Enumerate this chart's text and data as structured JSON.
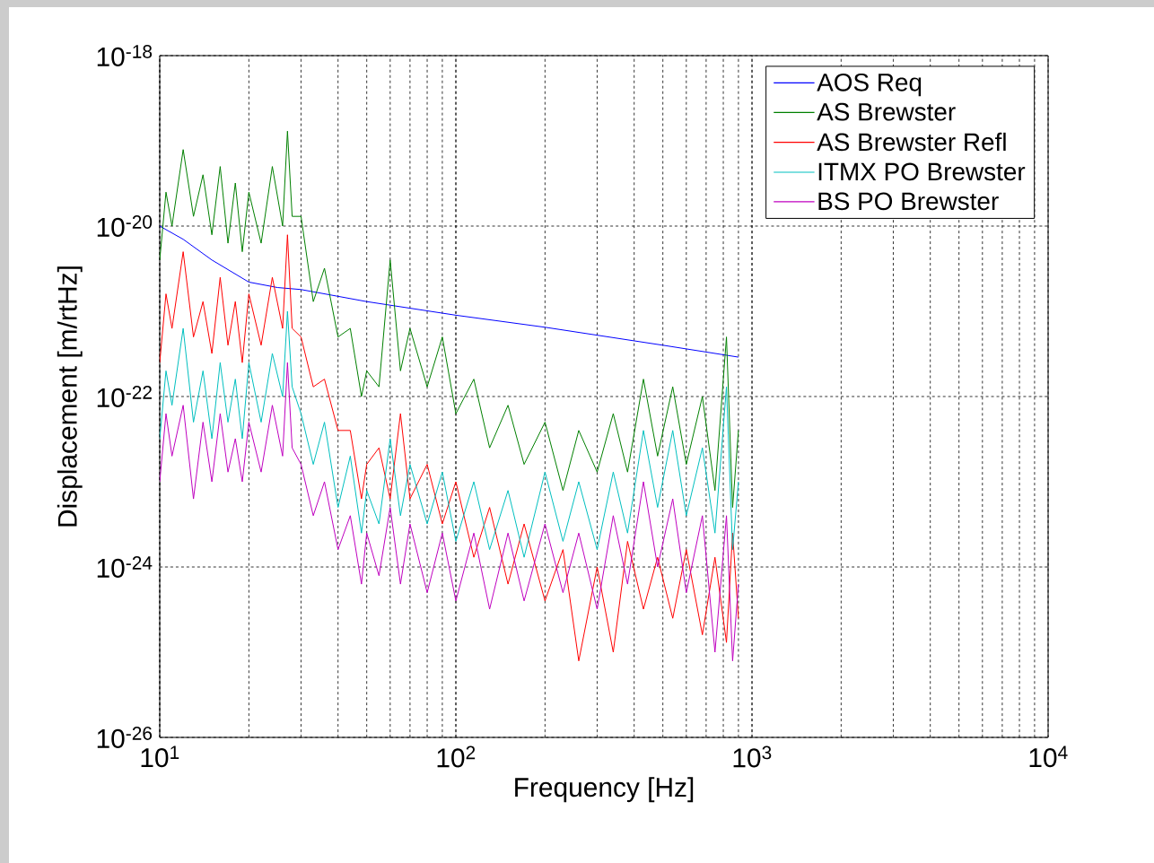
{
  "chart_data": {
    "type": "line",
    "xlabel": "Frequency [Hz]",
    "ylabel": "Displacement [m/rtHz]",
    "log": "xy",
    "grid": true,
    "legend": "top right",
    "marker": "none",
    "line_style": "solid",
    "xlim": [
      10,
      10000
    ],
    "ylim": [
      1e-26,
      1e-18
    ],
    "xticks": [
      {
        "value": 10,
        "label": "10$^{1}$"
      },
      {
        "value": 100,
        "label": "10$^{2}$"
      },
      {
        "value": 1000,
        "label": "10$^{3}$"
      },
      {
        "value": 10000,
        "label": "10$^{4}$"
      }
    ],
    "yticks": [
      {
        "value": 1e-26,
        "label": "10$^{-26}$"
      },
      {
        "value": 1e-24,
        "label": "10$^{-24}$"
      },
      {
        "value": 1e-22,
        "label": "10$^{-22}$"
      },
      {
        "value": 1e-20,
        "label": "10$^{-20}$"
      },
      {
        "value": 1e-18,
        "label": "10$^{-18}$"
      }
    ],
    "x": [
      10,
      10.5,
      11,
      12,
      13,
      14,
      15,
      16,
      17,
      18,
      19,
      20,
      22,
      24,
      26,
      27,
      28,
      30,
      33,
      36,
      40,
      44,
      48,
      50,
      55,
      60,
      65,
      70,
      80,
      90,
      100,
      115,
      130,
      150,
      170,
      200,
      230,
      260,
      300,
      340,
      380,
      430,
      480,
      540,
      600,
      680,
      750,
      820,
      860,
      900
    ],
    "series": [
      {
        "name": "AOS Req",
        "color": "#0000ff",
        "x": [
          10,
          12,
          15,
          20,
          25,
          30,
          50,
          100,
          200,
          500,
          900
        ],
        "values": [
          1e-20,
          7e-21,
          4e-21,
          2.2e-21,
          1.9e-21,
          1.8e-21,
          1.3e-21,
          9e-22,
          6.5e-22,
          4e-22,
          2.9e-22
        ]
      },
      {
        "name": "AS Brewster",
        "color": "#008000",
        "values": [
          4e-21,
          2.5e-20,
          1e-20,
          7.9e-20,
          1.3e-20,
          4e-20,
          7.9e-21,
          5e-20,
          6.3e-21,
          3.2e-20,
          5e-21,
          2.5e-20,
          6.3e-21,
          5e-20,
          1e-20,
          1.3e-19,
          1.3e-20,
          1.3e-20,
          1.3e-21,
          3.2e-21,
          5e-22,
          6.3e-22,
          1e-22,
          2e-22,
          1.3e-22,
          4e-21,
          2e-22,
          6.3e-22,
          1.3e-22,
          5e-22,
          6.3e-23,
          1.6e-22,
          2.5e-23,
          7.9e-23,
          1.6e-23,
          5e-23,
          7.9e-24,
          4e-23,
          1.3e-23,
          6.3e-23,
          1.3e-23,
          1.6e-22,
          2e-23,
          1.3e-22,
          1.6e-23,
          1e-22,
          7.9e-24,
          5e-22,
          5e-24,
          4e-23
        ]
      },
      {
        "name": "AS Brewster Refl",
        "color": "#ff0000",
        "values": [
          2.5e-22,
          1.6e-21,
          6.3e-22,
          5e-21,
          5e-22,
          1.3e-21,
          3.2e-22,
          2.5e-21,
          4e-22,
          1.3e-21,
          2.5e-22,
          1.6e-21,
          4e-22,
          2.5e-21,
          6.3e-22,
          7.9e-21,
          6.3e-22,
          5e-22,
          1.3e-22,
          1.6e-22,
          4e-23,
          4e-23,
          6.3e-24,
          1.6e-23,
          2.5e-23,
          6.3e-24,
          6.3e-23,
          6.3e-24,
          1.6e-23,
          3.2e-24,
          1e-23,
          1.3e-24,
          5e-24,
          6.3e-25,
          3.2e-24,
          4e-25,
          1.6e-24,
          7.9e-26,
          1e-24,
          1e-25,
          2e-24,
          3.2e-25,
          1.3e-24,
          2.5e-25,
          1.6e-24,
          1.6e-25,
          1.3e-24,
          1.3e-25,
          2.5e-24,
          2.5e-25
        ]
      },
      {
        "name": "ITMX PO Brewster",
        "color": "#00bfbf",
        "values": [
          3.2e-23,
          2e-22,
          7.9e-23,
          6.3e-22,
          5e-23,
          2e-22,
          3.2e-23,
          2.5e-22,
          5e-23,
          1.6e-22,
          3.2e-23,
          2.5e-22,
          5e-23,
          3.2e-22,
          1e-22,
          1e-21,
          1.3e-22,
          6.3e-23,
          1.6e-23,
          5e-23,
          5e-24,
          2e-23,
          2.5e-24,
          7.9e-24,
          3.2e-24,
          3.2e-23,
          4e-24,
          1.6e-23,
          3.2e-24,
          1.3e-23,
          2e-24,
          1e-23,
          1.6e-24,
          7.9e-24,
          1.3e-24,
          1.3e-23,
          2e-24,
          1e-23,
          1.6e-24,
          1.3e-23,
          2.5e-24,
          4e-23,
          5e-24,
          4e-23,
          4e-24,
          2.5e-23,
          2.5e-24,
          1.3e-22,
          1.6e-24,
          1e-23
        ]
      },
      {
        "name": "BS PO Brewster",
        "color": "#bf00bf",
        "values": [
          1e-23,
          6.3e-23,
          2e-23,
          7.9e-23,
          6.3e-24,
          5e-23,
          1e-23,
          6.3e-23,
          1.3e-23,
          3.2e-23,
          1e-23,
          5e-23,
          1.3e-23,
          7.9e-23,
          2e-23,
          2.5e-22,
          2.5e-23,
          1.6e-23,
          4e-24,
          1e-23,
          1.6e-24,
          4e-24,
          6.3e-25,
          2.5e-24,
          7.9e-25,
          5e-24,
          6.3e-25,
          3.2e-24,
          5e-25,
          2.5e-24,
          4e-25,
          2.5e-24,
          3.2e-25,
          2.5e-24,
          4e-25,
          3.2e-24,
          5e-25,
          2.5e-24,
          3.2e-25,
          4e-24,
          6.3e-25,
          1e-23,
          1e-24,
          6.3e-24,
          5e-25,
          4e-24,
          1e-25,
          4e-24,
          7.9e-26,
          6.3e-25
        ]
      }
    ]
  }
}
